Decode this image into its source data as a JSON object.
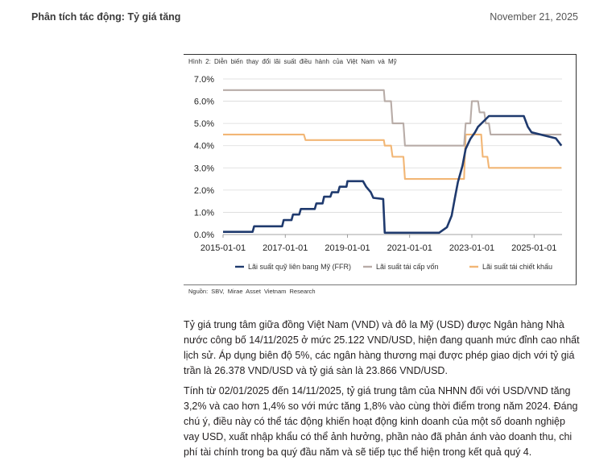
{
  "header": {
    "title": "Phân tích tác động: Tỷ giá tăng",
    "date": "November 21, 2025"
  },
  "figure": {
    "caption": "Hình 2: Diễn biến thay đổi lãi suất điều hành của Việt Nam và Mỹ",
    "source": "Nguồn: SBV, Mirae Asset Vietnam Research"
  },
  "colors": {
    "ffr": "#1f3a6e",
    "refinancing": "#b8aca7",
    "discount": "#f2b675",
    "grid": "#d9d9d9"
  },
  "chart_data": {
    "type": "line",
    "title": "",
    "xlabel": "",
    "ylabel": "",
    "x_range": [
      2015.0,
      2025.9
    ],
    "ylim": [
      0,
      7
    ],
    "y_ticks": [
      "0.0%",
      "1.0%",
      "2.0%",
      "3.0%",
      "4.0%",
      "5.0%",
      "6.0%",
      "7.0%"
    ],
    "x_ticks": [
      {
        "label": "2015-01-01",
        "value": 2015.0
      },
      {
        "label": "2017-01-01",
        "value": 2017.0
      },
      {
        "label": "2019-01-01",
        "value": 2019.0
      },
      {
        "label": "2021-01-01",
        "value": 2021.0
      },
      {
        "label": "2023-01-01",
        "value": 2023.0
      },
      {
        "label": "2025-01-01",
        "value": 2025.0
      }
    ],
    "legend_position": "bottom",
    "series": [
      {
        "name": "Lãi suất quỹ liên bang Mỹ (FFR)",
        "key": "ffr",
        "x": [
          2015.0,
          2015.95,
          2016.0,
          2016.9,
          2016.95,
          2017.2,
          2017.25,
          2017.45,
          2017.5,
          2017.95,
          2018.0,
          2018.2,
          2018.25,
          2018.45,
          2018.5,
          2018.7,
          2018.75,
          2018.97,
          2019.0,
          2019.5,
          2019.6,
          2019.75,
          2019.83,
          2020.15,
          2020.2,
          2021.95,
          2022.2,
          2022.35,
          2022.45,
          2022.55,
          2022.7,
          2022.8,
          2022.95,
          2023.1,
          2023.2,
          2023.55,
          2024.67,
          2024.8,
          2024.92,
          2025.7,
          2025.8,
          2025.88
        ],
        "values": [
          0.12,
          0.12,
          0.37,
          0.37,
          0.65,
          0.65,
          0.9,
          0.9,
          1.15,
          1.15,
          1.4,
          1.4,
          1.7,
          1.7,
          1.9,
          1.9,
          2.15,
          2.15,
          2.4,
          2.4,
          2.15,
          1.9,
          1.65,
          1.6,
          0.08,
          0.08,
          0.33,
          0.85,
          1.6,
          2.35,
          3.1,
          3.85,
          4.3,
          4.6,
          4.85,
          5.33,
          5.33,
          4.85,
          4.6,
          4.33,
          4.15,
          4.0
        ]
      },
      {
        "name": "Lãi suất tái cấp vốn",
        "key": "refinancing",
        "x": [
          2015.0,
          2020.17,
          2020.2,
          2020.4,
          2020.45,
          2020.8,
          2020.85,
          2022.75,
          2022.8,
          2022.95,
          2023.0,
          2023.2,
          2023.25,
          2023.4,
          2023.45,
          2023.55,
          2023.6,
          2025.88
        ],
        "values": [
          6.5,
          6.5,
          6.0,
          6.0,
          5.0,
          5.0,
          4.0,
          4.0,
          5.0,
          5.0,
          6.0,
          6.0,
          5.5,
          5.5,
          5.0,
          5.0,
          4.5,
          4.5
        ]
      },
      {
        "name": "Lãi suất tái chiết khấu",
        "key": "discount",
        "x": [
          2015.0,
          2017.6,
          2017.65,
          2020.17,
          2020.2,
          2020.4,
          2020.45,
          2020.8,
          2020.85,
          2022.75,
          2022.8,
          2023.3,
          2023.35,
          2023.5,
          2023.55,
          2025.88
        ],
        "values": [
          4.5,
          4.5,
          4.25,
          4.25,
          4.0,
          4.0,
          3.5,
          3.5,
          2.5,
          2.5,
          4.5,
          4.5,
          3.5,
          3.5,
          3.0,
          3.0
        ]
      }
    ]
  },
  "paragraphs": {
    "p1": "Tỷ giá trung tâm giữa đồng Việt Nam (VND) và đô la Mỹ (USD) được Ngân hàng Nhà nước công bố 14/11/2025 ở mức 25.122 VND/USD, hiện đang quanh mức đỉnh cao nhất lịch sử. Áp dụng biên độ 5%, các ngân hàng thương mại được phép giao dịch với tỷ giá trần là 26.378 VND/USD và tỷ giá sàn là 23.866 VND/USD.",
    "p2": "Tính từ 02/01/2025 đến 14/11/2025, tỷ giá trung tâm của NHNN đối với USD/VND tăng 3,2% và cao hơn 1,4% so với mức tăng 1,8% vào cùng thời điểm trong năm 2024. Đáng chú ý, điều này có thể tác động khiến hoạt động kinh doanh của một số doanh nghiệp vay USD, xuất nhập khẩu có thể ảnh hưởng, phần nào đã phản ánh vào doanh thu, chi phí tài chính trong ba quý đầu năm và sẽ tiếp tục thể hiện trong kết quả quý 4."
  }
}
